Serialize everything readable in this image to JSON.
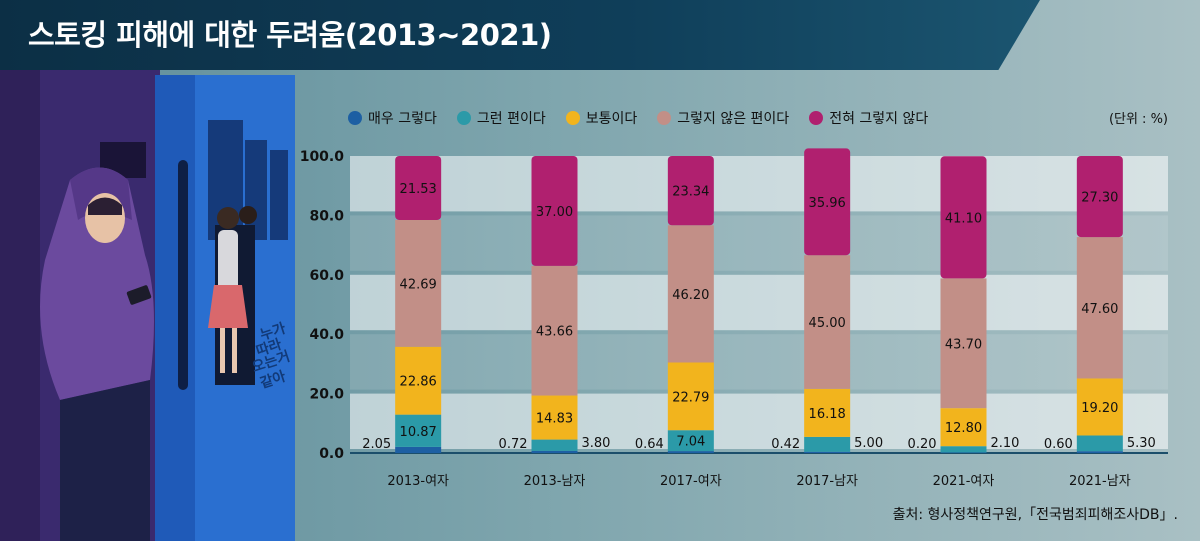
{
  "header": {
    "title": "스토킹 피해에 대한 두려움(2013~2021)"
  },
  "illustration": {
    "caption_lines": [
      "누가",
      "따라",
      "오는거",
      "같아"
    ]
  },
  "unit_label": "(단위 : %)",
  "source_label": "출처: 형사정책연구원,「전국범죄피해조사DB」.",
  "colors": {
    "매우 그렇다": "#1d5fa3",
    "그런 편이다": "#2b9aa8",
    "보통이다": "#f2b41d",
    "그렇지 않은 편이다": "#c28f87",
    "전혀 그렇지 않다": "#b0206f"
  },
  "chart_data": {
    "type": "bar",
    "stacked": true,
    "categories": [
      "2013-여자",
      "2013-남자",
      "2017-여자",
      "2017-남자",
      "2021-여자",
      "2021-남자"
    ],
    "series": [
      {
        "name": "매우 그렇다",
        "values": [
          2.05,
          0.72,
          0.64,
          0.42,
          0.2,
          0.6
        ]
      },
      {
        "name": "그런 편이다",
        "values": [
          10.87,
          3.8,
          7.04,
          5.0,
          2.1,
          5.3
        ]
      },
      {
        "name": "보통이다",
        "values": [
          22.86,
          14.83,
          22.79,
          16.18,
          12.8,
          19.2
        ]
      },
      {
        "name": "그렇지 않은 편이다",
        "values": [
          42.69,
          43.66,
          46.2,
          45.0,
          43.7,
          47.6
        ]
      },
      {
        "name": "전혀 그렇지 않다",
        "values": [
          21.53,
          37.0,
          23.34,
          35.96,
          41.1,
          27.3
        ]
      }
    ],
    "value_labels": [
      [
        "2.05",
        "0.72",
        "0.64",
        "0.42",
        "0.20",
        "0.60"
      ],
      [
        "10.87",
        "3.80",
        "7.04",
        "5.00",
        "2.10",
        "5.30"
      ],
      [
        "22.86",
        "14.83",
        "22.79",
        "16.18",
        "12.80",
        "19.20"
      ],
      [
        "42.69",
        "43.66",
        "46.20",
        "45.00",
        "43.70",
        "47.60"
      ],
      [
        "21.53",
        "37.00",
        "23.34",
        "35.96",
        "41.10",
        "27.30"
      ]
    ],
    "y_ticks": [
      "0.0",
      "20.0",
      "40.0",
      "60.0",
      "80.0",
      "100.0"
    ],
    "ylim": [
      0,
      100
    ],
    "grid": true,
    "legend_position": "top"
  }
}
